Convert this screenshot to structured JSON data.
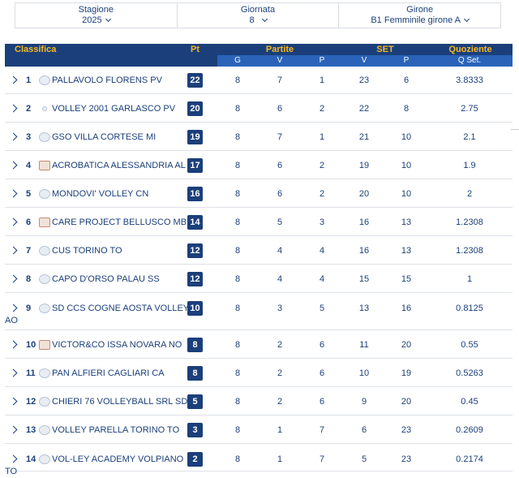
{
  "filters": [
    {
      "label": "Stagione",
      "value": "2025"
    },
    {
      "label": "Giornata",
      "value": "8"
    },
    {
      "label": "Girone",
      "value": "B1 Femminile girone A"
    }
  ],
  "headers": {
    "classifica": "Classifica",
    "pt": "Pt",
    "partite": "Partite",
    "set": "SET",
    "quoziente": "Quoziente",
    "g": "G",
    "v1": "V",
    "p1": "P",
    "v2": "V",
    "p2": "P",
    "qset": "Q Set."
  },
  "rows": [
    {
      "pos": "1",
      "team": "PALLAVOLO FLORENS PV",
      "team_cont": "",
      "pt": "22",
      "g": "8",
      "v": "7",
      "p": "1",
      "sv": "23",
      "sp": "6",
      "q": "3.8333",
      "logo": "round"
    },
    {
      "pos": "2",
      "team": "VOLLEY 2001 GARLASCO PV",
      "team_cont": "",
      "pt": "20",
      "g": "8",
      "v": "6",
      "p": "2",
      "sv": "22",
      "sp": "8",
      "q": "2.75",
      "logo": "dot"
    },
    {
      "pos": "3",
      "team": "GSO VILLA CORTESE MI",
      "team_cont": "",
      "pt": "19",
      "g": "8",
      "v": "7",
      "p": "1",
      "sv": "21",
      "sp": "10",
      "q": "2.1",
      "logo": "round"
    },
    {
      "pos": "4",
      "team": "ACROBATICA ALESSANDRIA AL",
      "team_cont": "",
      "pt": "17",
      "g": "8",
      "v": "6",
      "p": "2",
      "sv": "19",
      "sp": "10",
      "q": "1.9",
      "logo": "tag"
    },
    {
      "pos": "5",
      "team": "MONDOVI' VOLLEY CN",
      "team_cont": "",
      "pt": "16",
      "g": "8",
      "v": "6",
      "p": "2",
      "sv": "20",
      "sp": "10",
      "q": "2",
      "logo": "round"
    },
    {
      "pos": "6",
      "team": "CARE PROJECT BELLUSCO MB",
      "team_cont": "",
      "pt": "14",
      "g": "8",
      "v": "5",
      "p": "3",
      "sv": "16",
      "sp": "13",
      "q": "1.2308",
      "logo": "tag"
    },
    {
      "pos": "7",
      "team": "CUS TORINO TO",
      "team_cont": "",
      "pt": "12",
      "g": "8",
      "v": "4",
      "p": "4",
      "sv": "16",
      "sp": "13",
      "q": "1.2308",
      "logo": "round"
    },
    {
      "pos": "8",
      "team": "CAPO D'ORSO PALAU SS",
      "team_cont": "",
      "pt": "12",
      "g": "8",
      "v": "4",
      "p": "4",
      "sv": "15",
      "sp": "15",
      "q": "1",
      "logo": "round"
    },
    {
      "pos": "9",
      "team": "SD CCS COGNE AOSTA VOLLEY",
      "team_cont": "AO",
      "pt": "10",
      "g": "8",
      "v": "3",
      "p": "5",
      "sv": "13",
      "sp": "16",
      "q": "0.8125",
      "logo": "round"
    },
    {
      "pos": "10",
      "team": "VICTOR&CO ISSA NOVARA NO",
      "team_cont": "",
      "pt": "8",
      "g": "8",
      "v": "2",
      "p": "6",
      "sv": "11",
      "sp": "20",
      "q": "0.55",
      "logo": "tag"
    },
    {
      "pos": "11",
      "team": "PAN ALFIERI CAGLIARI CA",
      "team_cont": "",
      "pt": "8",
      "g": "8",
      "v": "2",
      "p": "6",
      "sv": "10",
      "sp": "19",
      "q": "0.5263",
      "logo": "round"
    },
    {
      "pos": "12",
      "team": "CHIERI 76 VOLLEYBALL SRL SD",
      "team_cont": "",
      "pt": "5",
      "g": "8",
      "v": "2",
      "p": "6",
      "sv": "9",
      "sp": "20",
      "q": "0.45",
      "logo": "round"
    },
    {
      "pos": "13",
      "team": "VOLLEY PARELLA TORINO TO",
      "team_cont": "",
      "pt": "3",
      "g": "8",
      "v": "1",
      "p": "7",
      "sv": "6",
      "sp": "23",
      "q": "0.2609",
      "logo": "round"
    },
    {
      "pos": "14",
      "team": "VOL-LEY ACADEMY VOLPIANO",
      "team_cont": "TO",
      "pt": "2",
      "g": "8",
      "v": "1",
      "p": "7",
      "sv": "5",
      "sp": "23",
      "q": "0.2174",
      "logo": "round"
    }
  ],
  "icons": {
    "expand": "chevron-right-icon",
    "dropdown": "chevron-down-icon"
  },
  "colors": {
    "header_bg": "#1b3f7a",
    "subheader_bg": "#2a63b8",
    "header_text": "#f5b820",
    "text": "#1b3f7a"
  }
}
